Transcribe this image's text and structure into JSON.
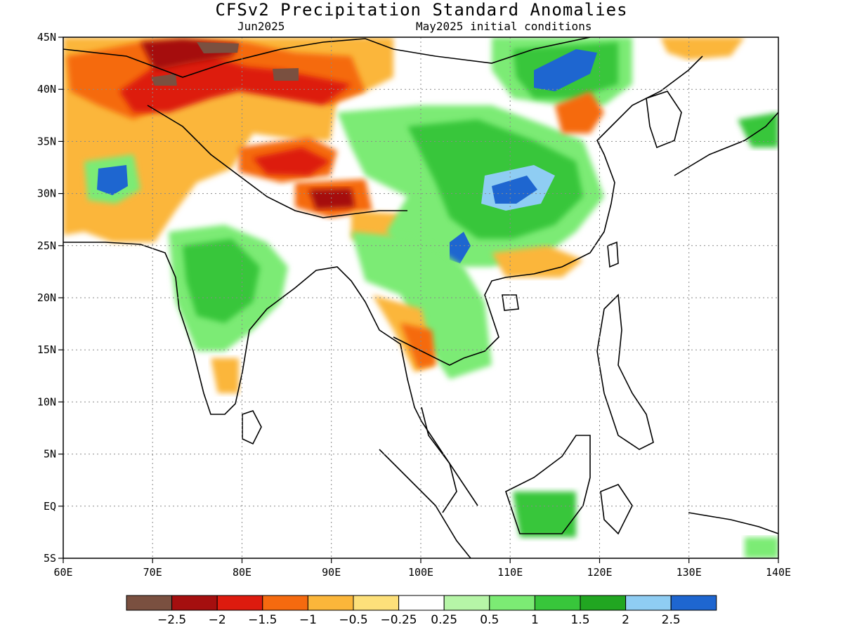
{
  "title": "CFSv2 Precipitation Standard Anomalies",
  "subtitle_left": "Jun2025",
  "subtitle_right": "May2025 initial conditions",
  "map": {
    "lon_range": [
      60,
      140
    ],
    "lat_range": [
      -5,
      45
    ],
    "x_tick_labels": [
      "60E",
      "70E",
      "80E",
      "90E",
      "100E",
      "110E",
      "120E",
      "130E",
      "140E"
    ],
    "y_tick_labels": [
      "45N",
      "40N",
      "35N",
      "30N",
      "25N",
      "20N",
      "15N",
      "10N",
      "5N",
      "EQ",
      "5S"
    ],
    "grid": "dotted"
  },
  "colorbar": {
    "colors": [
      "#7a5040",
      "#a50f0f",
      "#dd1b0e",
      "#f56a0f",
      "#fbb63a",
      "#fde07a",
      "#ffffff",
      "#b6f5a7",
      "#7ceb74",
      "#38c63b",
      "#21a621",
      "#8fcdf3",
      "#1e66d0"
    ],
    "labels": [
      "−2.5",
      "−2",
      "−1.5",
      "−1",
      "−0.5",
      "−0.25",
      "0.25",
      "0.5",
      "1",
      "1.5",
      "2",
      "2.5"
    ]
  }
}
